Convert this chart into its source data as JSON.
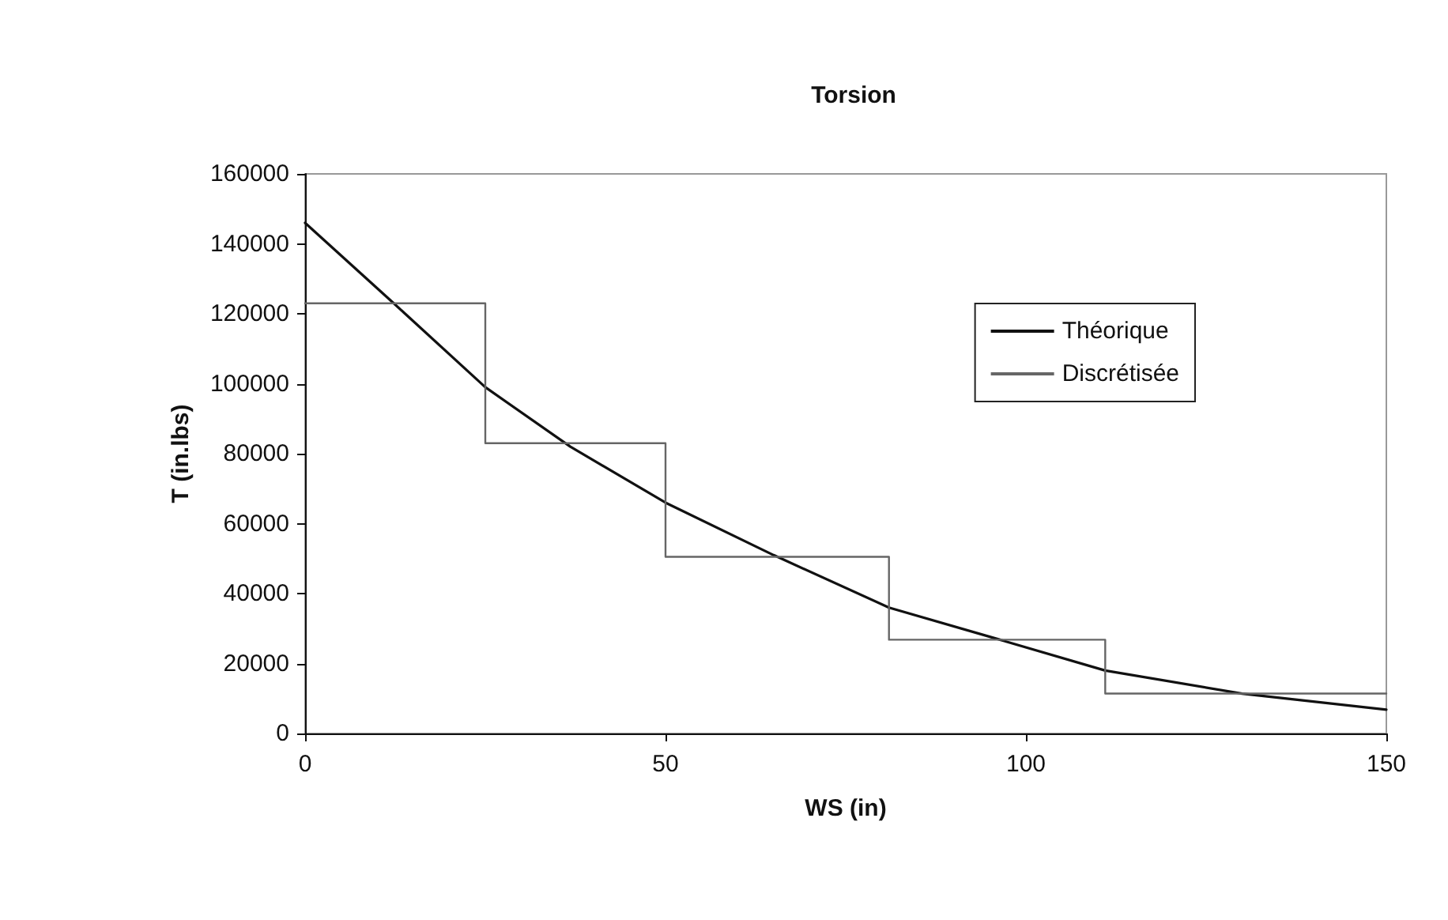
{
  "chart_data": {
    "type": "line",
    "title": "Torsion",
    "xlabel": "WS (in)",
    "ylabel": "T (in.lbs)",
    "xlim": [
      0,
      150
    ],
    "xticks": [
      0,
      50,
      100,
      150
    ],
    "ylim": [
      0,
      160000
    ],
    "yticks": [
      0,
      20000,
      40000,
      60000,
      80000,
      100000,
      120000,
      140000,
      160000
    ],
    "grid": false,
    "legend": "right",
    "marker": "none",
    "line_style": "solid",
    "series": [
      {
        "name": "Théorique",
        "color": "#111111",
        "x": [
          0,
          12.3,
          25,
          36.8,
          50,
          65,
          81,
          96.4,
          111,
          130,
          150
        ],
        "values": [
          146000,
          123000,
          99000,
          82000,
          66000,
          51000,
          36000,
          26800,
          18000,
          11400,
          6800
        ]
      },
      {
        "name": "Discrétisée",
        "type": "step",
        "color": "#666666",
        "x": [
          0,
          25,
          50,
          81,
          111,
          150
        ],
        "values": [
          123000,
          83000,
          50500,
          26800,
          11400,
          11400
        ]
      }
    ]
  }
}
